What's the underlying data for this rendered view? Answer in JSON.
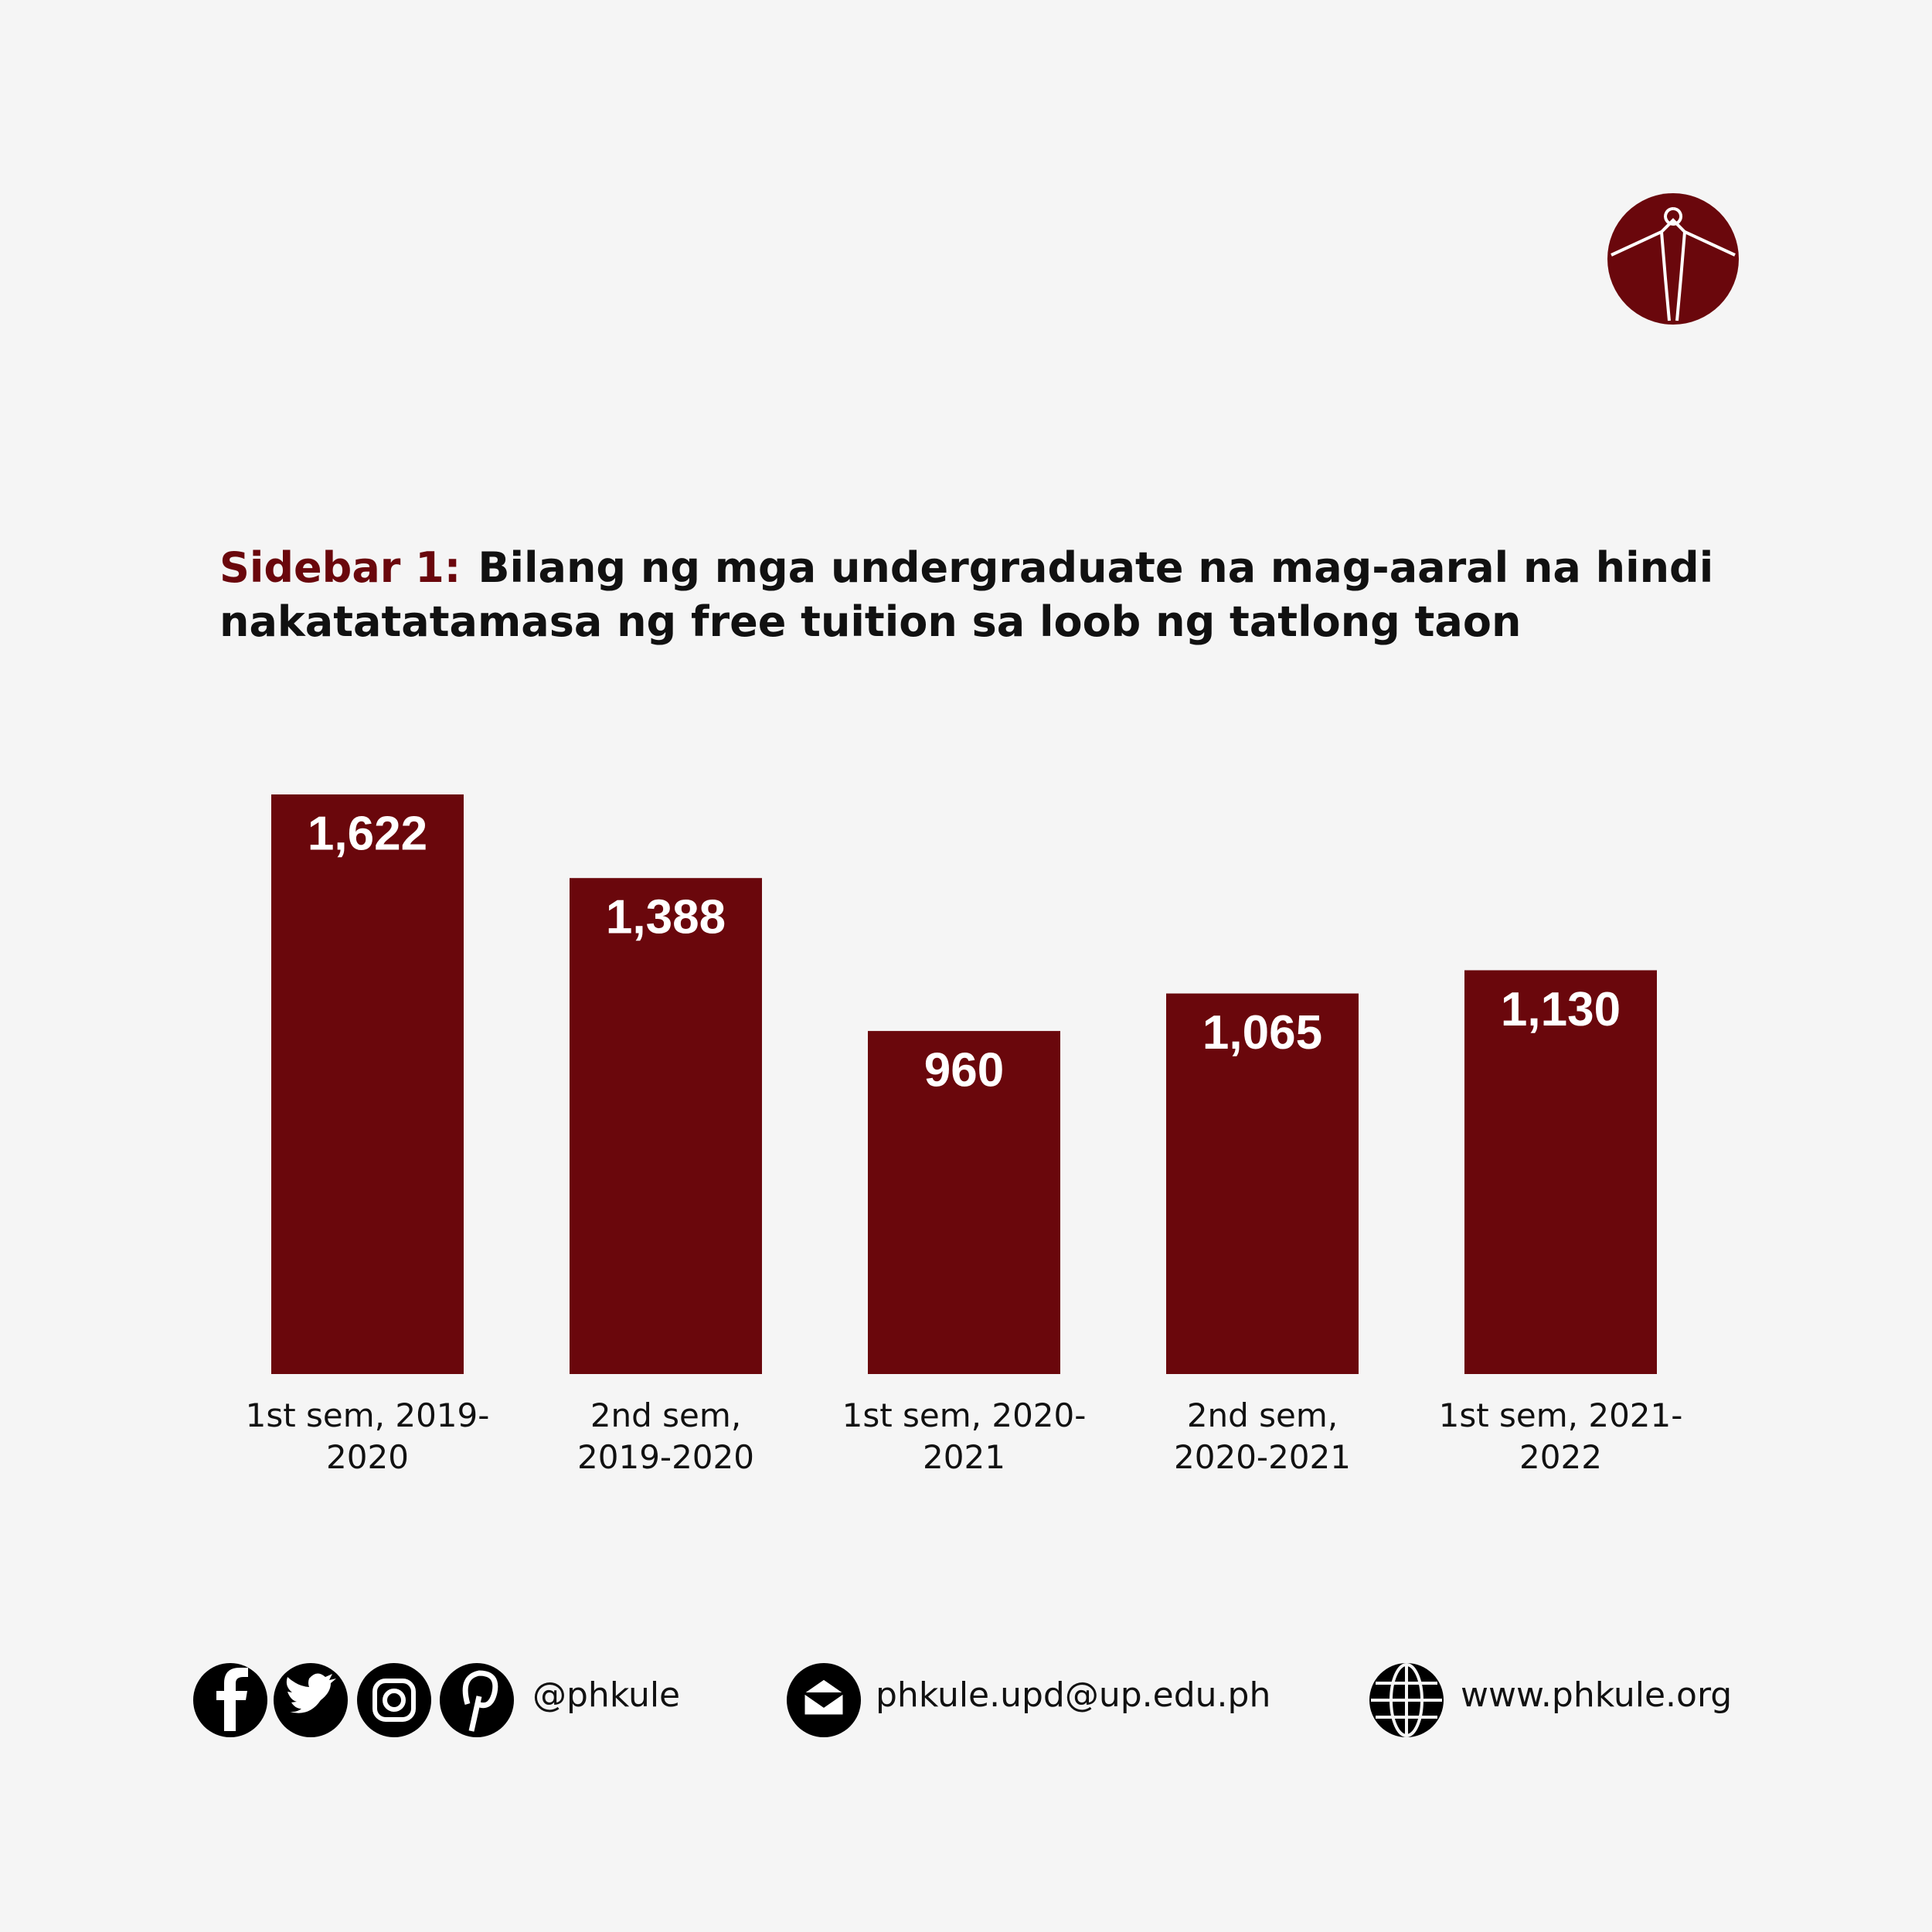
{
  "chart_data": {
    "type": "bar",
    "sidebar_label": "Sidebar 1:",
    "title": "Bilang ng mga undergraduate na mag-aaral na hindi nakatatatamasa ng free tuition sa loob ng tatlong taon",
    "categories": [
      "1st sem, 2019-2020",
      "2nd sem, 2019-2020",
      "1st sem, 2020-2021",
      "2nd sem, 2020-2021",
      "1st sem, 2021-2022"
    ],
    "values": [
      1622,
      1388,
      960,
      1065,
      1130
    ],
    "value_labels": [
      "1,622",
      "1,388",
      "960",
      "1,065",
      "1,130"
    ],
    "color": "#6a070c"
  },
  "footer": {
    "social": "@phkule",
    "email": "phkule.upd@up.edu.ph",
    "website": "www.phkule.org"
  }
}
